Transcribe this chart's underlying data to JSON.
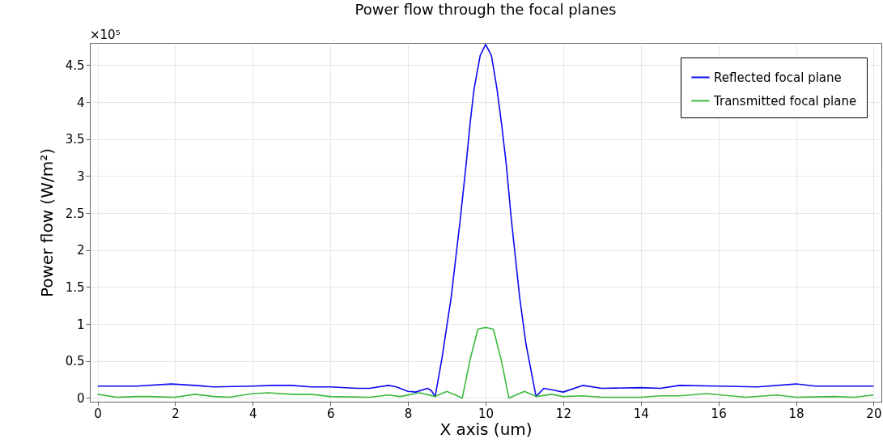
{
  "chart_data": {
    "type": "line",
    "title": "Power flow through the focal planes",
    "xlabel": "X axis (um)",
    "ylabel": "Power flow (W/m²)",
    "annotations": [
      "×10⁵"
    ],
    "xlim": [
      -0.2,
      20.2
    ],
    "xticks": [
      0,
      2,
      4,
      6,
      8,
      10,
      12,
      14,
      16,
      18,
      20
    ],
    "ylim": [
      -0.05,
      4.8
    ],
    "yticks": [
      0,
      0.5,
      1,
      1.5,
      2,
      2.5,
      3,
      3.5,
      4,
      4.5
    ],
    "grid": true,
    "legend": "top right",
    "line_style": "solid",
    "marker": "none",
    "series": [
      {
        "name": "Reflected focal plane",
        "color": "#0a0af0",
        "x": [
          0,
          1,
          1.9,
          2.5,
          3,
          4,
          4.5,
          5,
          5.5,
          6,
          6.7,
          7,
          7.5,
          7.7,
          8,
          8.2,
          8.5,
          8.6,
          8.7,
          8.87,
          9.11,
          9.35,
          9.5,
          9.6,
          9.7,
          9.86,
          10,
          10.15,
          10.29,
          10.41,
          10.53,
          10.66,
          10.88,
          11.04,
          11.3,
          11.5,
          11.8,
          12,
          12.5,
          13,
          14,
          14.5,
          15,
          16,
          17,
          18,
          18.5,
          19,
          20
        ],
        "values": [
          0.16,
          0.16,
          0.19,
          0.17,
          0.15,
          0.16,
          0.17,
          0.17,
          0.15,
          0.15,
          0.13,
          0.13,
          0.17,
          0.15,
          0.09,
          0.08,
          0.13,
          0.1,
          0.02,
          0.52,
          1.35,
          2.43,
          3.17,
          3.71,
          4.17,
          4.63,
          4.78,
          4.63,
          4.19,
          3.71,
          3.17,
          2.43,
          1.35,
          0.73,
          0.02,
          0.13,
          0.1,
          0.08,
          0.17,
          0.13,
          0.14,
          0.13,
          0.17,
          0.16,
          0.15,
          0.19,
          0.16,
          0.16,
          0.16
        ]
      },
      {
        "name": "Transmitted focal plane",
        "color": "#3cb93c",
        "x": [
          0,
          0.5,
          1,
          1.3,
          2,
          2.5,
          3,
          3.4,
          4,
          4.4,
          5,
          5.5,
          6,
          7,
          7.5,
          7.8,
          8.3,
          8.7,
          9,
          9.4,
          9.6,
          9.8,
          9.95,
          10.05,
          10.2,
          10.4,
          10.6,
          11,
          11.3,
          11.7,
          12,
          12.5,
          13,
          14,
          14.5,
          15,
          15.7,
          16.7,
          17.5,
          18,
          19,
          19.5,
          20
        ],
        "values": [
          0.05,
          0.01,
          0.02,
          0.02,
          0.01,
          0.05,
          0.02,
          0.01,
          0.06,
          0.07,
          0.05,
          0.05,
          0.02,
          0.01,
          0.04,
          0.02,
          0.07,
          0.02,
          0.09,
          0,
          0.52,
          0.93,
          0.95,
          0.95,
          0.93,
          0.52,
          0,
          0.09,
          0.02,
          0.05,
          0.02,
          0.03,
          0.01,
          0.01,
          0.03,
          0.03,
          0.06,
          0.01,
          0.04,
          0.01,
          0.02,
          0.01,
          0.04
        ]
      }
    ]
  }
}
